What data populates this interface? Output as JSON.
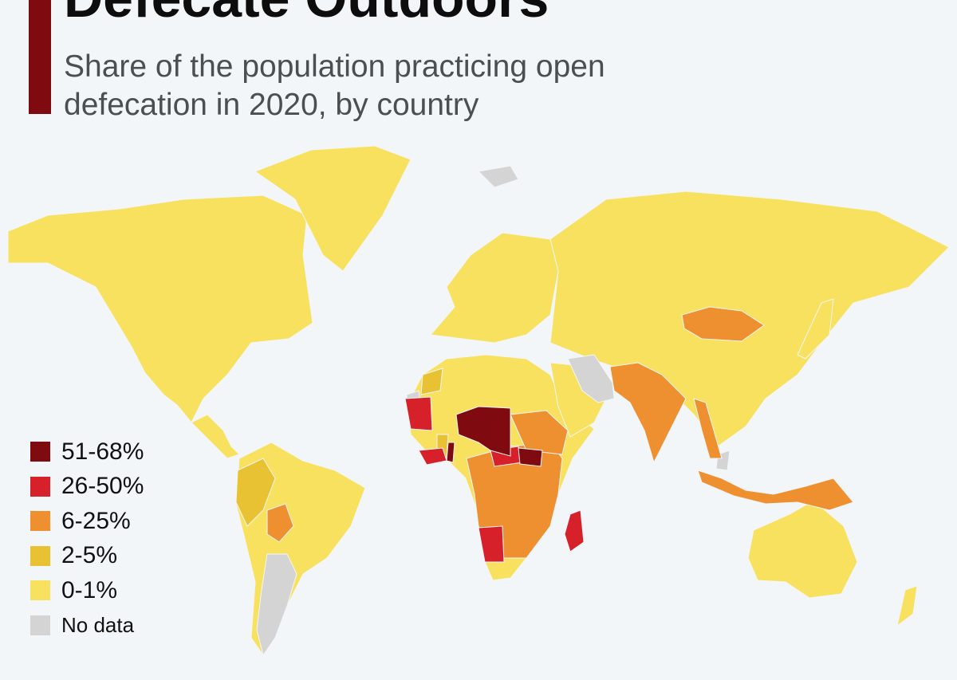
{
  "header": {
    "title": "Defecate Outdoors",
    "subtitle": "Share of the population practicing open defecation in 2020, by country"
  },
  "colors": {
    "accent": "#7f0a0f",
    "c51_68": "#7f0a0f",
    "c26_50": "#d6212b",
    "c6_25": "#ef9030",
    "c2_5": "#e9c234",
    "c0_1": "#f8e15e",
    "nodata": "#d4d4d4",
    "ocean": "#f3f6f8"
  },
  "legend": {
    "items": [
      {
        "label": "51-68%",
        "color": "#7f0a0f"
      },
      {
        "label": "26-50%",
        "color": "#d6212b"
      },
      {
        "label": "6-25%",
        "color": "#ef9030"
      },
      {
        "label": "2-5%",
        "color": "#e9c234"
      },
      {
        "label": "0-1%",
        "color": "#f8e15e"
      },
      {
        "label": "No data",
        "color": "#d4d4d4"
      }
    ]
  }
}
